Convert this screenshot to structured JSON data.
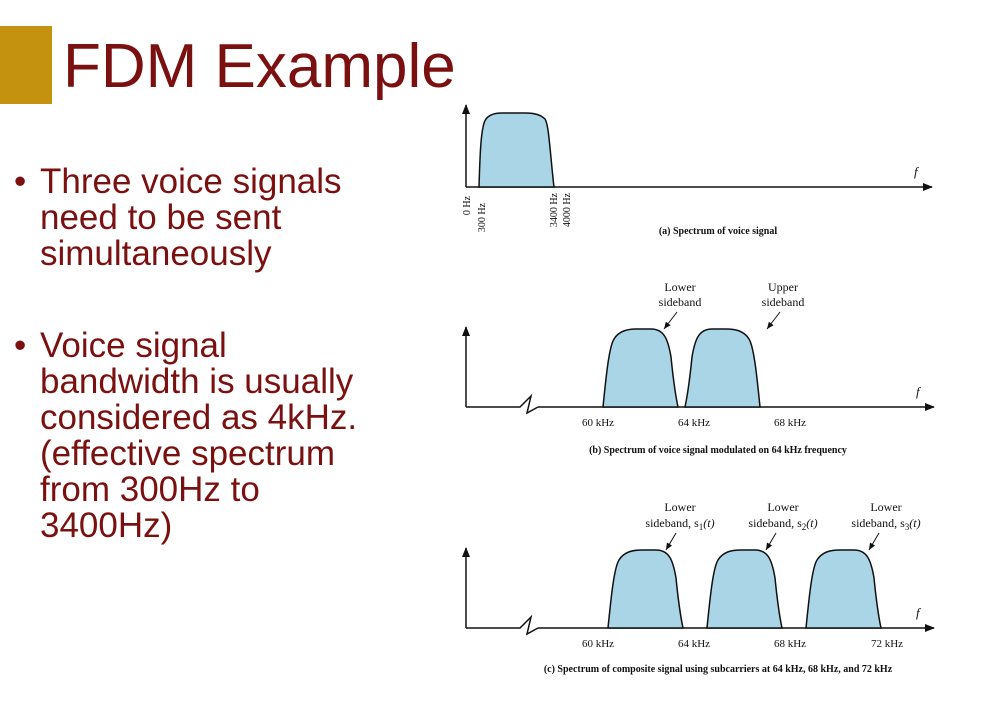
{
  "slide": {
    "title": "FDM Example",
    "bullets": [
      "Three voice signals need to be sent simultaneously",
      "Voice signal bandwidth is usually considered as 4kHz. (effective spectrum from 300Hz to 3400Hz)"
    ],
    "bullet_symbol": "•"
  },
  "colors": {
    "accent": "#c4920f",
    "title": "#7b1010",
    "spectrum_fill": "#a9d5e6"
  },
  "figure": {
    "axis_symbol": "f",
    "panel_a": {
      "caption": "(a) Spectrum of voice signal",
      "tick_labels": [
        "0 Hz",
        "300 Hz",
        "3400 Hz",
        "4000 Hz"
      ]
    },
    "panel_b": {
      "caption": "(b) Spectrum of voice signal modulated on 64 kHz frequency",
      "tick_labels": [
        "60 kHz",
        "64 kHz",
        "68 kHz"
      ],
      "annotations": [
        {
          "line1": "Lower",
          "line2": "sideband"
        },
        {
          "line1": "Upper",
          "line2": "sideband"
        }
      ]
    },
    "panel_c": {
      "caption": "(c) Spectrum of composite signal using subcarriers at 64 kHz, 68 kHz, and 72 kHz",
      "tick_labels": [
        "60 kHz",
        "64 kHz",
        "68 kHz",
        "72 kHz"
      ],
      "annotations": [
        {
          "line1": "Lower",
          "line2": "sideband, s",
          "sub": "1",
          "arg": "(t)"
        },
        {
          "line1": "Lower",
          "line2": "sideband, s",
          "sub": "2",
          "arg": "(t)"
        },
        {
          "line1": "Lower",
          "line2": "sideband, s",
          "sub": "3",
          "arg": "(t)"
        }
      ]
    }
  }
}
